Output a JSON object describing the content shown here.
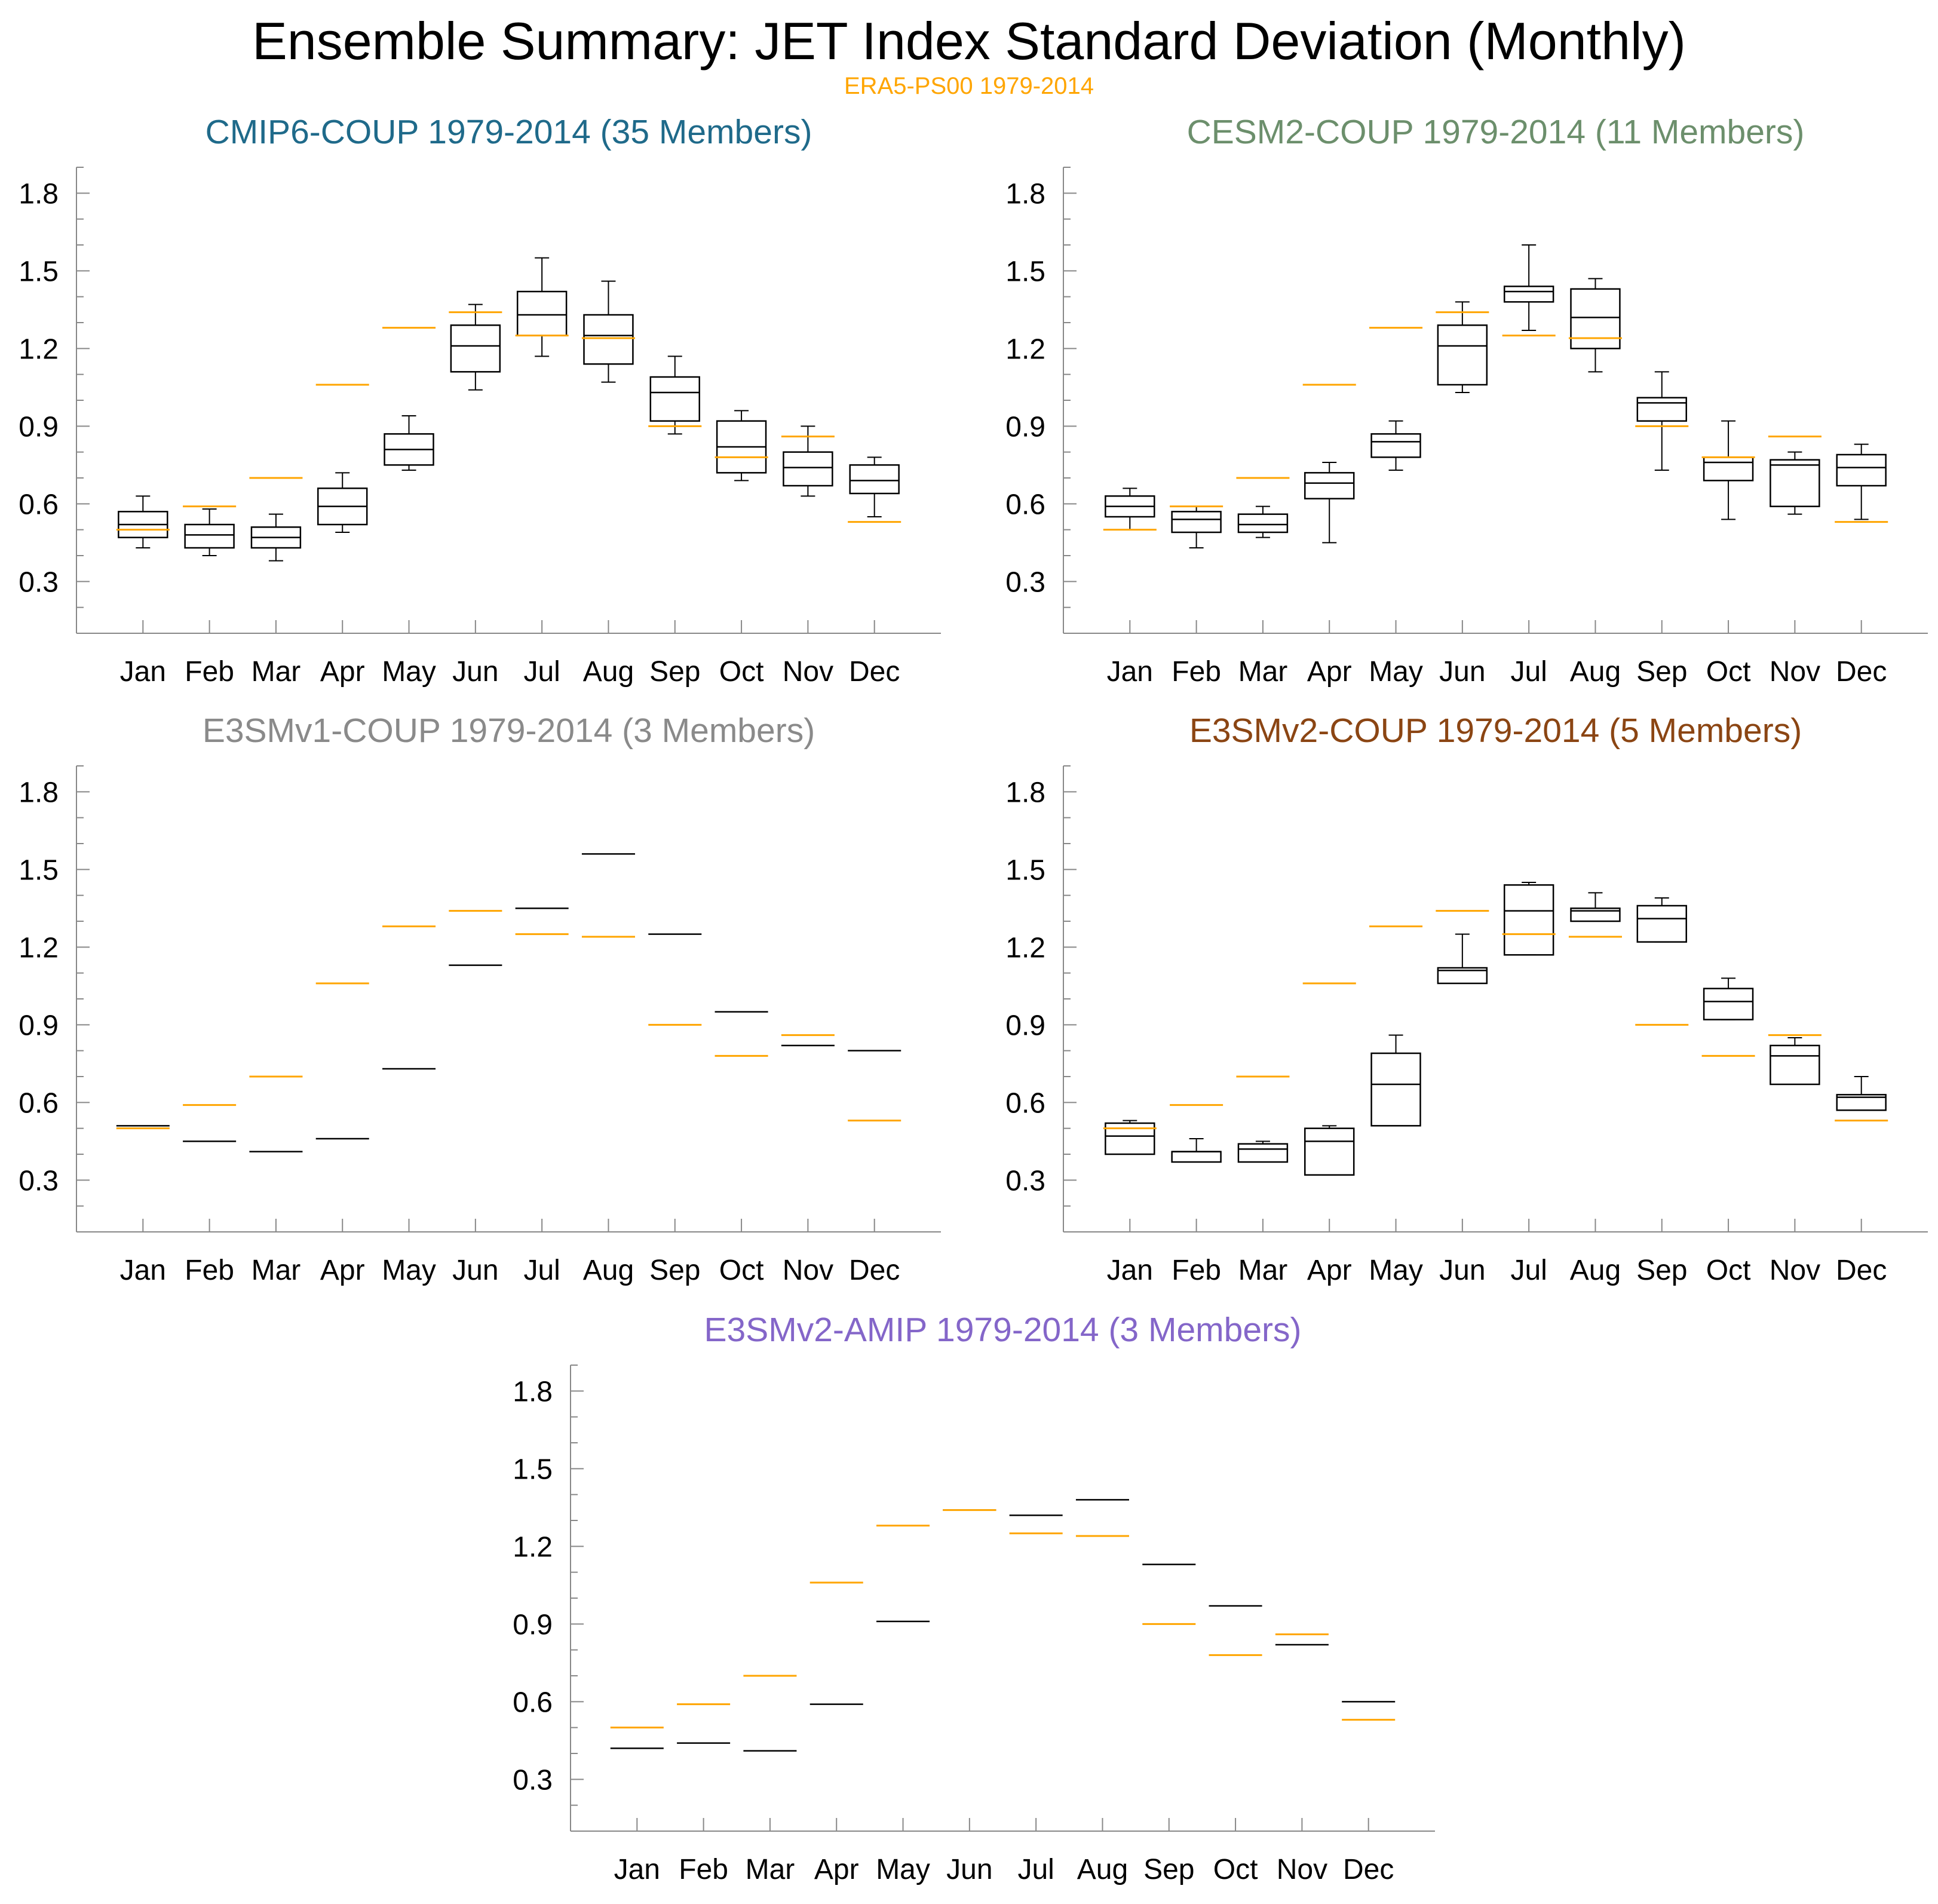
{
  "title": "Ensemble Summary: JET Index Standard Deviation (Monthly)",
  "subtitle": "ERA5-PS00 1979-2014",
  "colors": {
    "reference": "#FFA500",
    "box": "#000000",
    "axis": "#888888"
  },
  "chart_data": [
    {
      "type": "box",
      "title": "CMIP6-COUP 1979-2014 (35 Members)",
      "title_color": "#1F6A8A",
      "categories": [
        "Jan",
        "Feb",
        "Mar",
        "Apr",
        "May",
        "Jun",
        "Jul",
        "Aug",
        "Sep",
        "Oct",
        "Nov",
        "Dec"
      ],
      "y_ticks": [
        "0.3",
        "0.6",
        "0.9",
        "1.2",
        "1.5",
        "1.8"
      ],
      "ylim": [
        0.1,
        1.9
      ],
      "boxes": [
        {
          "min": 0.43,
          "q1": 0.47,
          "median": 0.52,
          "q3": 0.57,
          "max": 0.63
        },
        {
          "min": 0.4,
          "q1": 0.43,
          "median": 0.48,
          "q3": 0.52,
          "max": 0.58
        },
        {
          "min": 0.38,
          "q1": 0.43,
          "median": 0.47,
          "q3": 0.51,
          "max": 0.56
        },
        {
          "min": 0.49,
          "q1": 0.52,
          "median": 0.59,
          "q3": 0.66,
          "max": 0.72
        },
        {
          "min": 0.73,
          "q1": 0.75,
          "median": 0.81,
          "q3": 0.87,
          "max": 0.94
        },
        {
          "min": 1.04,
          "q1": 1.11,
          "median": 1.21,
          "q3": 1.29,
          "max": 1.37
        },
        {
          "min": 1.17,
          "q1": 1.25,
          "median": 1.33,
          "q3": 1.42,
          "max": 1.55
        },
        {
          "min": 1.07,
          "q1": 1.14,
          "median": 1.25,
          "q3": 1.33,
          "max": 1.46
        },
        {
          "min": 0.87,
          "q1": 0.92,
          "median": 1.03,
          "q3": 1.09,
          "max": 1.17
        },
        {
          "min": 0.69,
          "q1": 0.72,
          "median": 0.82,
          "q3": 0.92,
          "max": 0.96
        },
        {
          "min": 0.63,
          "q1": 0.67,
          "median": 0.74,
          "q3": 0.8,
          "max": 0.9
        },
        {
          "min": 0.55,
          "q1": 0.64,
          "median": 0.69,
          "q3": 0.75,
          "max": 0.78
        }
      ],
      "reference": [
        0.5,
        0.59,
        0.7,
        1.06,
        1.28,
        1.34,
        1.25,
        1.24,
        0.9,
        0.78,
        0.86,
        0.53
      ]
    },
    {
      "type": "box",
      "title": "CESM2-COUP 1979-2014 (11 Members)",
      "title_color": "#6C8F6C",
      "categories": [
        "Jan",
        "Feb",
        "Mar",
        "Apr",
        "May",
        "Jun",
        "Jul",
        "Aug",
        "Sep",
        "Oct",
        "Nov",
        "Dec"
      ],
      "y_ticks": [
        "0.3",
        "0.6",
        "0.9",
        "1.2",
        "1.5",
        "1.8"
      ],
      "ylim": [
        0.1,
        1.9
      ],
      "boxes": [
        {
          "min": 0.5,
          "q1": 0.55,
          "median": 0.59,
          "q3": 0.63,
          "max": 0.66
        },
        {
          "min": 0.43,
          "q1": 0.49,
          "median": 0.54,
          "q3": 0.57,
          "max": 0.59
        },
        {
          "min": 0.47,
          "q1": 0.49,
          "median": 0.52,
          "q3": 0.56,
          "max": 0.59
        },
        {
          "min": 0.45,
          "q1": 0.62,
          "median": 0.68,
          "q3": 0.72,
          "max": 0.76
        },
        {
          "min": 0.73,
          "q1": 0.78,
          "median": 0.84,
          "q3": 0.87,
          "max": 0.92
        },
        {
          "min": 1.03,
          "q1": 1.06,
          "median": 1.21,
          "q3": 1.29,
          "max": 1.38
        },
        {
          "min": 1.27,
          "q1": 1.38,
          "median": 1.42,
          "q3": 1.44,
          "max": 1.6
        },
        {
          "min": 1.11,
          "q1": 1.2,
          "median": 1.32,
          "q3": 1.43,
          "max": 1.47
        },
        {
          "min": 0.73,
          "q1": 0.92,
          "median": 0.99,
          "q3": 1.01,
          "max": 1.11
        },
        {
          "min": 0.54,
          "q1": 0.69,
          "median": 0.76,
          "q3": 0.78,
          "max": 0.92
        },
        {
          "min": 0.56,
          "q1": 0.59,
          "median": 0.75,
          "q3": 0.77,
          "max": 0.8
        },
        {
          "min": 0.54,
          "q1": 0.67,
          "median": 0.74,
          "q3": 0.79,
          "max": 0.83
        }
      ],
      "reference": [
        0.5,
        0.59,
        0.7,
        1.06,
        1.28,
        1.34,
        1.25,
        1.24,
        0.9,
        0.78,
        0.86,
        0.53
      ]
    },
    {
      "type": "box",
      "title": "E3SMv1-COUP 1979-2014 (3 Members)",
      "title_color": "#8A8A8A",
      "categories": [
        "Jan",
        "Feb",
        "Mar",
        "Apr",
        "May",
        "Jun",
        "Jul",
        "Aug",
        "Sep",
        "Oct",
        "Nov",
        "Dec"
      ],
      "y_ticks": [
        "0.3",
        "0.6",
        "0.9",
        "1.2",
        "1.5",
        "1.8"
      ],
      "ylim": [
        0.1,
        1.9
      ],
      "boxes": [
        {
          "min": 0.51,
          "q1": 0.51,
          "median": 0.51,
          "q3": 0.51,
          "max": 0.51
        },
        {
          "min": 0.45,
          "q1": 0.45,
          "median": 0.45,
          "q3": 0.45,
          "max": 0.45
        },
        {
          "min": 0.41,
          "q1": 0.41,
          "median": 0.41,
          "q3": 0.41,
          "max": 0.41
        },
        {
          "min": 0.46,
          "q1": 0.46,
          "median": 0.46,
          "q3": 0.46,
          "max": 0.46
        },
        {
          "min": 0.73,
          "q1": 0.73,
          "median": 0.73,
          "q3": 0.73,
          "max": 0.73
        },
        {
          "min": 1.13,
          "q1": 1.13,
          "median": 1.13,
          "q3": 1.13,
          "max": 1.13
        },
        {
          "min": 1.35,
          "q1": 1.35,
          "median": 1.35,
          "q3": 1.35,
          "max": 1.35
        },
        {
          "min": 1.56,
          "q1": 1.56,
          "median": 1.56,
          "q3": 1.56,
          "max": 1.56
        },
        {
          "min": 1.25,
          "q1": 1.25,
          "median": 1.25,
          "q3": 1.25,
          "max": 1.25
        },
        {
          "min": 0.95,
          "q1": 0.95,
          "median": 0.95,
          "q3": 0.95,
          "max": 0.95
        },
        {
          "min": 0.82,
          "q1": 0.82,
          "median": 0.82,
          "q3": 0.82,
          "max": 0.82
        },
        {
          "min": 0.8,
          "q1": 0.8,
          "median": 0.8,
          "q3": 0.8,
          "max": 0.8
        }
      ],
      "reference": [
        0.5,
        0.59,
        0.7,
        1.06,
        1.28,
        1.34,
        1.25,
        1.24,
        0.9,
        0.78,
        0.86,
        0.53
      ]
    },
    {
      "type": "box",
      "title": "E3SMv2-COUP 1979-2014 (5 Members)",
      "title_color": "#8B4513",
      "categories": [
        "Jan",
        "Feb",
        "Mar",
        "Apr",
        "May",
        "Jun",
        "Jul",
        "Aug",
        "Sep",
        "Oct",
        "Nov",
        "Dec"
      ],
      "y_ticks": [
        "0.3",
        "0.6",
        "0.9",
        "1.2",
        "1.5",
        "1.8"
      ],
      "ylim": [
        0.1,
        1.9
      ],
      "boxes": [
        {
          "min": 0.4,
          "q1": 0.4,
          "median": 0.47,
          "q3": 0.52,
          "max": 0.53
        },
        {
          "min": 0.37,
          "q1": 0.37,
          "median": 0.41,
          "q3": 0.41,
          "max": 0.46
        },
        {
          "min": 0.37,
          "q1": 0.37,
          "median": 0.42,
          "q3": 0.44,
          "max": 0.45
        },
        {
          "min": 0.32,
          "q1": 0.32,
          "median": 0.45,
          "q3": 0.5,
          "max": 0.51
        },
        {
          "min": 0.51,
          "q1": 0.51,
          "median": 0.67,
          "q3": 0.79,
          "max": 0.86
        },
        {
          "min": 1.06,
          "q1": 1.06,
          "median": 1.11,
          "q3": 1.12,
          "max": 1.25
        },
        {
          "min": 1.17,
          "q1": 1.17,
          "median": 1.34,
          "q3": 1.44,
          "max": 1.45
        },
        {
          "min": 1.3,
          "q1": 1.3,
          "median": 1.34,
          "q3": 1.35,
          "max": 1.41
        },
        {
          "min": 1.22,
          "q1": 1.22,
          "median": 1.31,
          "q3": 1.36,
          "max": 1.39
        },
        {
          "min": 0.92,
          "q1": 0.92,
          "median": 0.99,
          "q3": 1.04,
          "max": 1.08
        },
        {
          "min": 0.67,
          "q1": 0.67,
          "median": 0.78,
          "q3": 0.82,
          "max": 0.85
        },
        {
          "min": 0.57,
          "q1": 0.57,
          "median": 0.62,
          "q3": 0.63,
          "max": 0.7
        }
      ],
      "reference": [
        0.5,
        0.59,
        0.7,
        1.06,
        1.28,
        1.34,
        1.25,
        1.24,
        0.9,
        0.78,
        0.86,
        0.53
      ]
    },
    {
      "type": "box",
      "title": "E3SMv2-AMIP 1979-2014 (3 Members)",
      "title_color": "#8466C9",
      "categories": [
        "Jan",
        "Feb",
        "Mar",
        "Apr",
        "May",
        "Jun",
        "Jul",
        "Aug",
        "Sep",
        "Oct",
        "Nov",
        "Dec"
      ],
      "y_ticks": [
        "0.3",
        "0.6",
        "0.9",
        "1.2",
        "1.5",
        "1.8"
      ],
      "ylim": [
        0.1,
        1.9
      ],
      "boxes": [
        {
          "min": 0.42,
          "q1": 0.42,
          "median": 0.42,
          "q3": 0.42,
          "max": 0.42
        },
        {
          "min": 0.44,
          "q1": 0.44,
          "median": 0.44,
          "q3": 0.44,
          "max": 0.44
        },
        {
          "min": 0.41,
          "q1": 0.41,
          "median": 0.41,
          "q3": 0.41,
          "max": 0.41
        },
        {
          "min": 0.59,
          "q1": 0.59,
          "median": 0.59,
          "q3": 0.59,
          "max": 0.59
        },
        {
          "min": 0.91,
          "q1": 0.91,
          "median": 0.91,
          "q3": 0.91,
          "max": 0.91
        },
        {
          "min": 1.34,
          "q1": 1.34,
          "median": 1.34,
          "q3": 1.34,
          "max": 1.34
        },
        {
          "min": 1.32,
          "q1": 1.32,
          "median": 1.32,
          "q3": 1.32,
          "max": 1.32
        },
        {
          "min": 1.38,
          "q1": 1.38,
          "median": 1.38,
          "q3": 1.38,
          "max": 1.38
        },
        {
          "min": 1.13,
          "q1": 1.13,
          "median": 1.13,
          "q3": 1.13,
          "max": 1.13
        },
        {
          "min": 0.97,
          "q1": 0.97,
          "median": 0.97,
          "q3": 0.97,
          "max": 0.97
        },
        {
          "min": 0.82,
          "q1": 0.82,
          "median": 0.82,
          "q3": 0.82,
          "max": 0.82
        },
        {
          "min": 0.6,
          "q1": 0.6,
          "median": 0.6,
          "q3": 0.6,
          "max": 0.6
        }
      ],
      "reference": [
        0.5,
        0.59,
        0.7,
        1.06,
        1.28,
        1.34,
        1.25,
        1.24,
        0.9,
        0.78,
        0.86,
        0.53
      ]
    }
  ]
}
